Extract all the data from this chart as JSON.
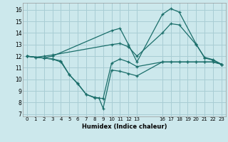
{
  "xlabel": "Humidex (Indice chaleur)",
  "bg_color": "#cce8ec",
  "grid_color": "#a8cdd4",
  "line_color": "#1a6e6a",
  "xlim": [
    -0.5,
    23.5
  ],
  "ylim": [
    6.8,
    16.6
  ],
  "yticks": [
    7,
    8,
    9,
    10,
    11,
    12,
    13,
    14,
    15,
    16
  ],
  "xtick_positions": [
    0,
    1,
    2,
    3,
    4,
    5,
    6,
    7,
    8,
    9,
    10,
    11,
    12,
    13,
    16,
    17,
    18,
    19,
    20,
    21,
    22,
    23
  ],
  "xtick_labels": [
    "0",
    "1",
    "2",
    "3",
    "4",
    "5",
    "6",
    "7",
    "8",
    "9",
    "10",
    "11",
    "12",
    "13",
    "16",
    "17",
    "18",
    "19",
    "20",
    "21",
    "22",
    "23"
  ],
  "lines": [
    {
      "x": [
        0,
        1,
        2,
        3,
        10,
        11,
        12,
        13,
        16,
        17,
        18,
        20,
        21,
        22,
        23
      ],
      "y": [
        12,
        11.9,
        11.85,
        12.0,
        14.2,
        14.4,
        13.0,
        11.5,
        15.6,
        16.1,
        15.8,
        13.05,
        11.85,
        11.65,
        11.3
      ]
    },
    {
      "x": [
        0,
        1,
        2,
        3,
        10,
        11,
        12,
        13,
        16,
        17,
        18,
        20,
        21,
        22,
        23
      ],
      "y": [
        12,
        11.9,
        12.0,
        12.1,
        13.0,
        13.1,
        12.8,
        12.0,
        14.0,
        14.8,
        14.7,
        13.0,
        11.9,
        11.7,
        11.3
      ]
    },
    {
      "x": [
        0,
        3,
        4,
        5,
        6,
        7,
        8,
        8.5,
        9,
        10,
        11,
        12,
        13,
        16,
        17,
        18,
        19,
        20,
        21,
        22,
        23
      ],
      "y": [
        12,
        11.75,
        11.6,
        10.4,
        9.6,
        8.7,
        8.45,
        8.4,
        7.5,
        10.8,
        10.7,
        10.5,
        10.3,
        11.5,
        11.5,
        11.5,
        11.5,
        11.5,
        11.5,
        11.5,
        11.3
      ]
    },
    {
      "x": [
        0,
        3,
        4,
        5,
        6,
        7,
        8,
        9,
        10,
        11,
        12,
        13,
        16,
        17,
        18,
        19,
        20,
        21,
        22,
        23
      ],
      "y": [
        12,
        11.75,
        11.5,
        10.4,
        9.65,
        8.7,
        8.4,
        8.35,
        11.4,
        11.75,
        11.5,
        11.1,
        11.5,
        11.5,
        11.5,
        11.5,
        11.5,
        11.5,
        11.5,
        11.3
      ]
    }
  ]
}
